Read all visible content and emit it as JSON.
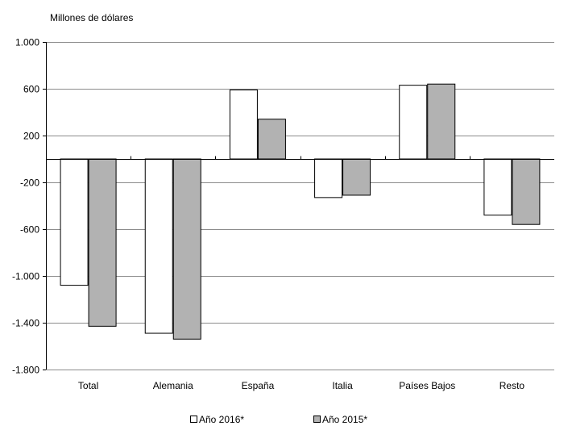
{
  "chart_data": {
    "type": "bar",
    "unit_label": "Millones de dólares",
    "categories": [
      "Total",
      "Alemania",
      "España",
      "Italia",
      "Países Bajos",
      "Resto"
    ],
    "series": [
      {
        "name": "Año 2016*",
        "color": "#ffffff",
        "values": [
          -1080,
          -1490,
          590,
          -330,
          630,
          -480
        ]
      },
      {
        "name": "Año 2015*",
        "color": "#b2b2b2",
        "values": [
          -1430,
          -1540,
          340,
          -310,
          640,
          -560
        ]
      }
    ],
    "ylim": [
      -1800,
      1000
    ],
    "yticks": [
      1000,
      600,
      200,
      -200,
      -600,
      -1000,
      -1400,
      -1800
    ],
    "ytick_labels": [
      "1.000",
      "600",
      "200",
      "-200",
      "-600",
      "-1.000",
      "-1.400",
      "-1.800"
    ],
    "grid": true,
    "legend_position": "bottom-center"
  }
}
